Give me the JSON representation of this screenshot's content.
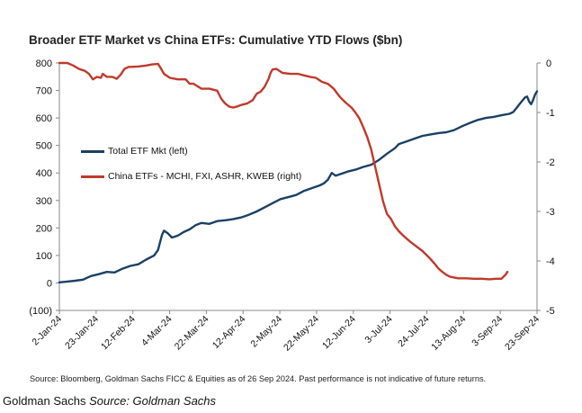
{
  "chart_data": {
    "type": "line",
    "title": "Broader ETF Market vs China ETFs: Cumulative YTD Flows ($bn)",
    "source_note": "Source: Bloomberg, Goldman Sachs FICC & Equities as of 26 Sep 2024. Past performance is not indicative of future returns.",
    "x_tick_labels": [
      "2-Jan-24",
      "23-Jan-24",
      "12-Feb-24",
      "4-Mar-24",
      "22-Mar-24",
      "12-Apr-24",
      "2-May-24",
      "22-May-24",
      "12-Jun-24",
      "3-Jul-24",
      "24-Jul-24",
      "13-Aug-24",
      "3-Sep-24",
      "23-Sep-24"
    ],
    "y_left": {
      "ticks": [
        "800",
        "700",
        "600",
        "500",
        "400",
        "300",
        "200",
        "100",
        "0",
        "(100)"
      ],
      "ylim": [
        -100,
        800
      ]
    },
    "y_right": {
      "ticks": [
        "0",
        "-1",
        "-2",
        "-3",
        "-4",
        "-5"
      ],
      "ylim": [
        -5,
        0
      ]
    },
    "legend_position": "left-center",
    "series": [
      {
        "name": "Total ETF Mkt (left)",
        "axis": "left",
        "color": "#1a4066",
        "points": [
          [
            0,
            2
          ],
          [
            4,
            5
          ],
          [
            8,
            8
          ],
          [
            12,
            12
          ],
          [
            16,
            25
          ],
          [
            20,
            32
          ],
          [
            24,
            40
          ],
          [
            28,
            38
          ],
          [
            32,
            52
          ],
          [
            36,
            62
          ],
          [
            40,
            68
          ],
          [
            44,
            85
          ],
          [
            48,
            100
          ],
          [
            50,
            120
          ],
          [
            52,
            175
          ],
          [
            53,
            190
          ],
          [
            55,
            180
          ],
          [
            57,
            165
          ],
          [
            60,
            172
          ],
          [
            63,
            185
          ],
          [
            66,
            195
          ],
          [
            69,
            210
          ],
          [
            72,
            218
          ],
          [
            76,
            215
          ],
          [
            80,
            225
          ],
          [
            84,
            228
          ],
          [
            88,
            232
          ],
          [
            92,
            238
          ],
          [
            96,
            248
          ],
          [
            100,
            260
          ],
          [
            104,
            275
          ],
          [
            108,
            290
          ],
          [
            112,
            305
          ],
          [
            116,
            312
          ],
          [
            120,
            320
          ],
          [
            124,
            335
          ],
          [
            128,
            345
          ],
          [
            132,
            355
          ],
          [
            134,
            362
          ],
          [
            136,
            375
          ],
          [
            138,
            400
          ],
          [
            140,
            390
          ],
          [
            142,
            395
          ],
          [
            146,
            405
          ],
          [
            150,
            412
          ],
          [
            154,
            422
          ],
          [
            158,
            430
          ],
          [
            162,
            448
          ],
          [
            166,
            470
          ],
          [
            170,
            490
          ],
          [
            172,
            505
          ],
          [
            176,
            515
          ],
          [
            180,
            525
          ],
          [
            184,
            535
          ],
          [
            188,
            540
          ],
          [
            192,
            545
          ],
          [
            196,
            548
          ],
          [
            200,
            556
          ],
          [
            204,
            570
          ],
          [
            208,
            582
          ],
          [
            212,
            593
          ],
          [
            216,
            600
          ],
          [
            220,
            604
          ],
          [
            224,
            610
          ],
          [
            228,
            615
          ],
          [
            230,
            622
          ],
          [
            232,
            640
          ],
          [
            234,
            658
          ],
          [
            236,
            675
          ],
          [
            237,
            678
          ],
          [
            238,
            660
          ],
          [
            239,
            650
          ],
          [
            240,
            665
          ],
          [
            241,
            685
          ],
          [
            242,
            697
          ]
        ]
      },
      {
        "name": "China ETFs - MCHI, FXI, ASHR, KWEB (right)",
        "axis": "right",
        "color": "#c0392b",
        "points": [
          [
            0,
            0.0
          ],
          [
            4,
            0.0
          ],
          [
            7,
            -0.05
          ],
          [
            10,
            -0.12
          ],
          [
            13,
            -0.16
          ],
          [
            15,
            -0.22
          ],
          [
            17,
            -0.33
          ],
          [
            19,
            -0.28
          ],
          [
            21,
            -0.3
          ],
          [
            22,
            -0.22
          ],
          [
            24,
            -0.28
          ],
          [
            27,
            -0.28
          ],
          [
            29,
            -0.32
          ],
          [
            31,
            -0.24
          ],
          [
            33,
            -0.12
          ],
          [
            35,
            -0.08
          ],
          [
            40,
            -0.07
          ],
          [
            44,
            -0.05
          ],
          [
            47,
            -0.03
          ],
          [
            50,
            -0.02
          ],
          [
            51,
            -0.08
          ],
          [
            53,
            -0.22
          ],
          [
            56,
            -0.3
          ],
          [
            60,
            -0.33
          ],
          [
            64,
            -0.33
          ],
          [
            66,
            -0.42
          ],
          [
            68,
            -0.42
          ],
          [
            72,
            -0.52
          ],
          [
            76,
            -0.52
          ],
          [
            80,
            -0.56
          ],
          [
            82,
            -0.72
          ],
          [
            84,
            -0.82
          ],
          [
            86,
            -0.88
          ],
          [
            88,
            -0.9
          ],
          [
            90,
            -0.88
          ],
          [
            92,
            -0.85
          ],
          [
            95,
            -0.82
          ],
          [
            98,
            -0.75
          ],
          [
            100,
            -0.62
          ],
          [
            102,
            -0.58
          ],
          [
            104,
            -0.48
          ],
          [
            106,
            -0.32
          ],
          [
            107,
            -0.2
          ],
          [
            108,
            -0.13
          ],
          [
            110,
            -0.12
          ],
          [
            113,
            -0.2
          ],
          [
            117,
            -0.22
          ],
          [
            121,
            -0.22
          ],
          [
            124,
            -0.25
          ],
          [
            127,
            -0.28
          ],
          [
            130,
            -0.3
          ],
          [
            133,
            -0.38
          ],
          [
            136,
            -0.42
          ],
          [
            139,
            -0.52
          ],
          [
            142,
            -0.68
          ],
          [
            145,
            -0.8
          ],
          [
            148,
            -0.9
          ],
          [
            150,
            -1.0
          ],
          [
            152,
            -1.12
          ],
          [
            154,
            -1.3
          ],
          [
            156,
            -1.5
          ],
          [
            158,
            -1.75
          ],
          [
            160,
            -2.1
          ],
          [
            162,
            -2.45
          ],
          [
            164,
            -2.8
          ],
          [
            166,
            -3.05
          ],
          [
            168,
            -3.15
          ],
          [
            170,
            -3.3
          ],
          [
            172,
            -3.4
          ],
          [
            174,
            -3.48
          ],
          [
            176,
            -3.55
          ],
          [
            178,
            -3.62
          ],
          [
            180,
            -3.68
          ],
          [
            184,
            -3.8
          ],
          [
            186,
            -3.88
          ],
          [
            188,
            -3.96
          ],
          [
            190,
            -4.05
          ],
          [
            192,
            -4.15
          ],
          [
            194,
            -4.22
          ],
          [
            196,
            -4.28
          ],
          [
            198,
            -4.32
          ],
          [
            202,
            -4.35
          ],
          [
            206,
            -4.35
          ],
          [
            210,
            -4.36
          ],
          [
            214,
            -4.36
          ],
          [
            218,
            -4.37
          ],
          [
            221,
            -4.36
          ],
          [
            224,
            -4.36
          ],
          [
            226,
            -4.28
          ],
          [
            227,
            -4.22
          ]
        ]
      }
    ]
  },
  "footer": {
    "publisher": "Goldman Sachs",
    "source_label": "Source: Goldman Sachs"
  }
}
